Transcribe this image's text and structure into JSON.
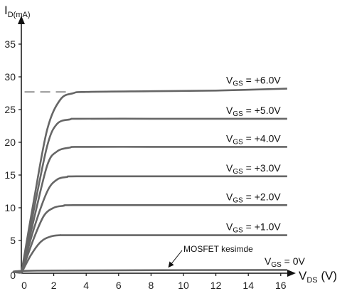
{
  "chart_data": {
    "type": "line",
    "y_axis": {
      "label_main": "I",
      "label_sub": "D(mA)",
      "range": [
        0,
        38
      ],
      "ticks": [
        0,
        5,
        10,
        15,
        20,
        25,
        30,
        35
      ]
    },
    "x_axis": {
      "label_main": "V",
      "label_sub": "DS",
      "label_unit": " (V)",
      "range": [
        0,
        16.5
      ],
      "ticks": [
        0,
        2,
        4,
        6,
        8,
        10,
        12,
        14,
        16
      ]
    },
    "grid": false,
    "series": [
      {
        "name": "VGS = +6.0V",
        "label_main": "V",
        "label_sub": "GS",
        "label_value": " = +6.0V",
        "x": [
          0,
          0.8,
          1.6,
          2.4,
          3.2,
          4.0,
          8,
          12,
          16.4
        ],
        "y": [
          0,
          11.5,
          22,
          26.5,
          27.5,
          27.7,
          27.8,
          27.9,
          28.2
        ]
      },
      {
        "name": "VGS = +5.0V",
        "label_main": "V",
        "label_sub": "GS",
        "label_value": " = +5.0V",
        "x": [
          0,
          0.8,
          1.6,
          2.2,
          3.0,
          3.6,
          8,
          12,
          16.4
        ],
        "y": [
          0,
          10,
          19.5,
          22.8,
          23.5,
          23.6,
          23.6,
          23.6,
          23.6
        ]
      },
      {
        "name": "VGS = +4.0V",
        "label_main": "V",
        "label_sub": "GS",
        "label_value": " = +4.0V",
        "x": [
          0,
          0.8,
          1.6,
          2.2,
          3.0,
          3.6,
          8,
          12,
          16.4
        ],
        "y": [
          0,
          8.5,
          16.5,
          18.6,
          19.2,
          19.3,
          19.3,
          19.3,
          19.3
        ]
      },
      {
        "name": "VGS = +3.0V",
        "label_main": "V",
        "label_sub": "GS",
        "label_value": " = +3.0V",
        "x": [
          0,
          0.8,
          1.6,
          2.2,
          2.8,
          3.4,
          8,
          12,
          16.4
        ],
        "y": [
          0,
          7,
          12.5,
          14.3,
          14.7,
          14.8,
          14.8,
          14.8,
          14.8
        ]
      },
      {
        "name": "VGS = +2.0V",
        "label_main": "V",
        "label_sub": "GS",
        "label_value": " = +2.0V",
        "x": [
          0,
          0.8,
          1.4,
          2.0,
          2.6,
          3.2,
          8,
          12,
          16.4
        ],
        "y": [
          0,
          5.5,
          8.8,
          10.0,
          10.3,
          10.4,
          10.4,
          10.4,
          10.4
        ]
      },
      {
        "name": "VGS = +1.0V",
        "label_main": "V",
        "label_sub": "GS",
        "label_value": " = +1.0V",
        "x": [
          0,
          0.6,
          1.2,
          1.8,
          2.4,
          3.0,
          8,
          12,
          16.4
        ],
        "y": [
          0,
          2.8,
          4.8,
          5.6,
          5.8,
          5.8,
          5.8,
          5.8,
          5.8
        ]
      },
      {
        "name": "VGS = 0V",
        "label_main": "V",
        "label_sub": "GS",
        "label_value": " = 0V",
        "x": [
          0,
          1,
          16.4
        ],
        "y": [
          0,
          0.4,
          0.5
        ]
      }
    ],
    "annotation": {
      "text": "MOSFET kesimde",
      "points_to": {
        "x": 9,
        "y": 0.5
      }
    },
    "reference_line": {
      "y": 27.7,
      "x_start": 0.2,
      "x_end": 3.0,
      "style": "dashed"
    }
  }
}
